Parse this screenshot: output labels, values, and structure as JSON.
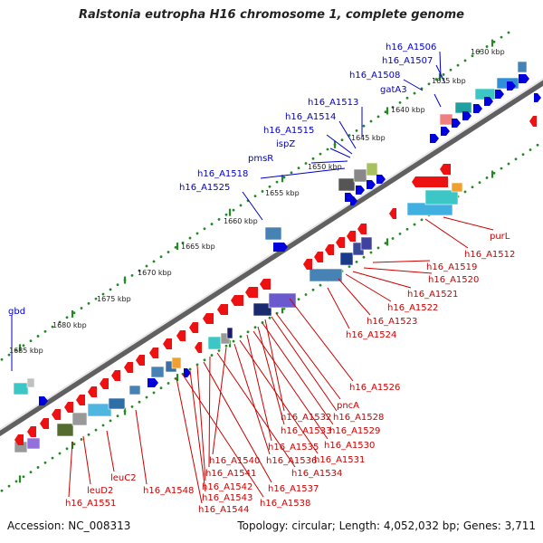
{
  "title": "Ralstonia eutropha H16 chromosome 1, complete genome",
  "footer": {
    "accession": "Accession: NC_008313",
    "stats": "Topology: circular; Length: 4,052,032 bp; Genes: 3,711"
  },
  "colors": {
    "forward_label": "#0000cc",
    "reverse_label": "#cc0000",
    "ring_stroke": "#707070",
    "tick_dots": "#228b22"
  },
  "scale_ticks": [
    "1630 kbp",
    "1635 kbp",
    "1640 kbp",
    "1645 kbp",
    "1650 kbp",
    "1655 kbp",
    "1660 kbp",
    "1665 kbp",
    "1670 kbp",
    "1675 kbp",
    "1680 kbp",
    "1685 kbp"
  ],
  "forward_labels": [
    "h16_A1506",
    "h16_A1507",
    "h16_A1508",
    "gatA3",
    "h16_A1513",
    "h16_A1514",
    "h16_A1515",
    "ispZ",
    "pmsR",
    "h16_A1518",
    "h16_A1525",
    "gbd"
  ],
  "reverse_labels": [
    "purL",
    "h16_A1512",
    "h16_A1519",
    "h16_A1520",
    "h16_A1521",
    "h16_A1522",
    "h16_A1523",
    "h16_A1524",
    "h16_A1526",
    "pncA",
    "h16_A1528",
    "h16_A1532",
    "h16_A1529",
    "h16_A1533",
    "h16_A1530",
    "h16_A1535",
    "h16_A1531",
    "h16_A1536",
    "h16_A1540",
    "h16_A1534",
    "h16_A1541",
    "h16_A1537",
    "h16_A1542",
    "h16_A1548",
    "h16_A1543",
    "h16_A1538",
    "h16_A1544",
    "leuC2",
    "leuD2",
    "h16_A1551"
  ]
}
